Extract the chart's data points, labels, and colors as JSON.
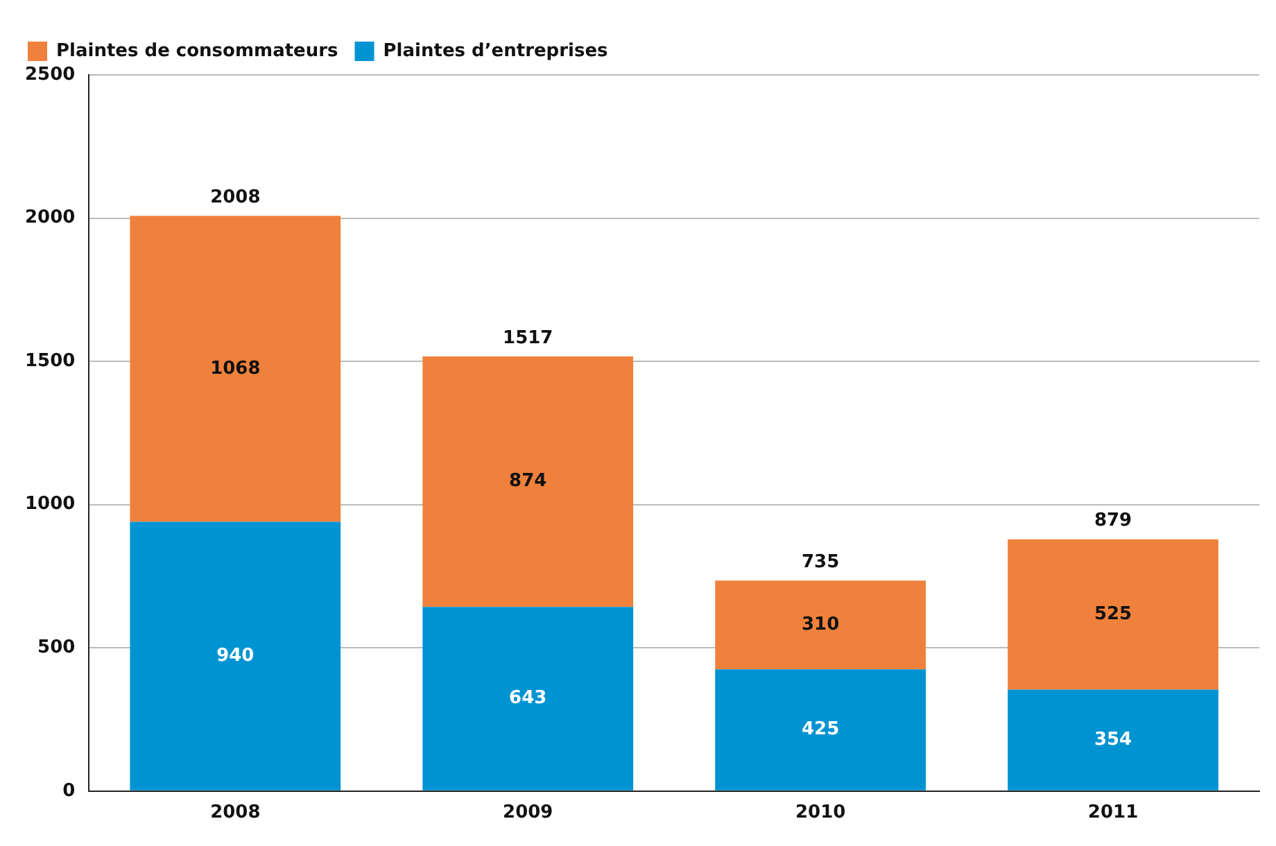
{
  "chart_data": {
    "type": "bar",
    "categories": [
      "2008",
      "2009",
      "2010",
      "2011"
    ],
    "stacked": true,
    "series": [
      {
        "name": "Plaintes d’entreprises",
        "color": "#0093d2",
        "values": [
          940,
          643,
          425,
          354
        ]
      },
      {
        "name": "Plaintes de consommateurs",
        "color": "#f0813c",
        "values": [
          1068,
          874,
          310,
          525
        ]
      }
    ],
    "ylim": [
      0,
      2500
    ],
    "yticks": [
      0,
      500,
      1000,
      1500,
      2000,
      2500
    ],
    "grid": "y",
    "legend": "top left",
    "data_labels": true,
    "totals": [
      "2008",
      "1517",
      "735",
      "879"
    ]
  }
}
